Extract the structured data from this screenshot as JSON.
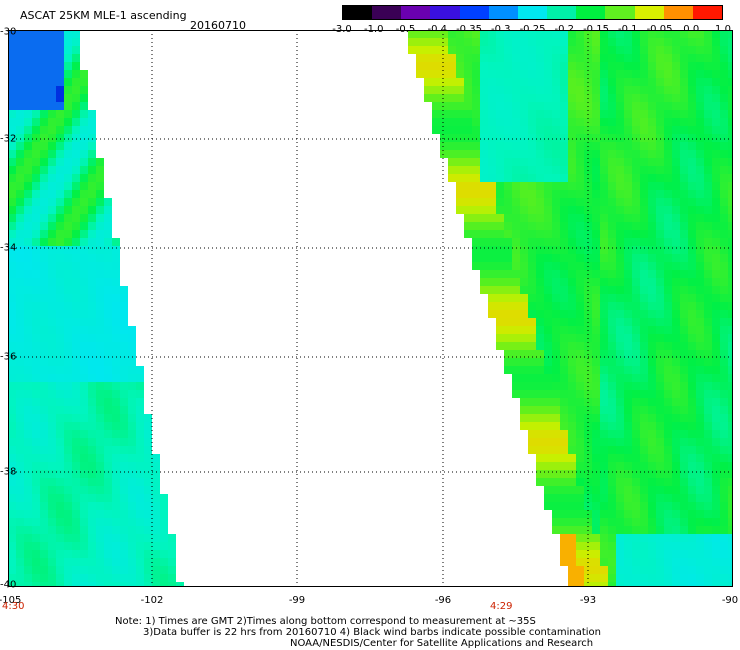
{
  "title": "ASCAT 25KM MLE-1 ascending",
  "date": "20160710",
  "colorbar": {
    "labels": [
      "-3.0",
      "-1.0",
      "-0.5",
      "-0.4",
      "-0.35",
      "-0.3",
      "-0.25",
      "-0.2",
      "-0.15",
      "-0.1",
      "-0.05",
      "0.0",
      "1.0"
    ],
    "colors": [
      "#000000",
      "#3a0055",
      "#6a00b0",
      "#3a10e0",
      "#0040ff",
      "#0090ff",
      "#00e8f0",
      "#00f0a8",
      "#00f040",
      "#60f020",
      "#d8f000",
      "#ff9000",
      "#ff1800"
    ]
  },
  "map": {
    "lat_labels": [
      "-30",
      "-32",
      "-34",
      "-36",
      "-38",
      "-40"
    ],
    "lon_labels": [
      "-105",
      "-102",
      "-99",
      "-96",
      "-93",
      "-90"
    ],
    "lat_range": [
      -40,
      -30
    ],
    "lon_range": [
      -105,
      -90
    ],
    "times": [
      "4:30",
      "4:29"
    ]
  },
  "notes": {
    "line1": "Note: 1) Times are GMT 2)Times along bottom correspond to measurement at ~35S",
    "line2": "3)Data buffer is 22 hrs from 20160710 4) Black wind barbs indicate possible contamination",
    "line3": "NOAA/NESDIS/Center for Satellite Applications and Research"
  }
}
